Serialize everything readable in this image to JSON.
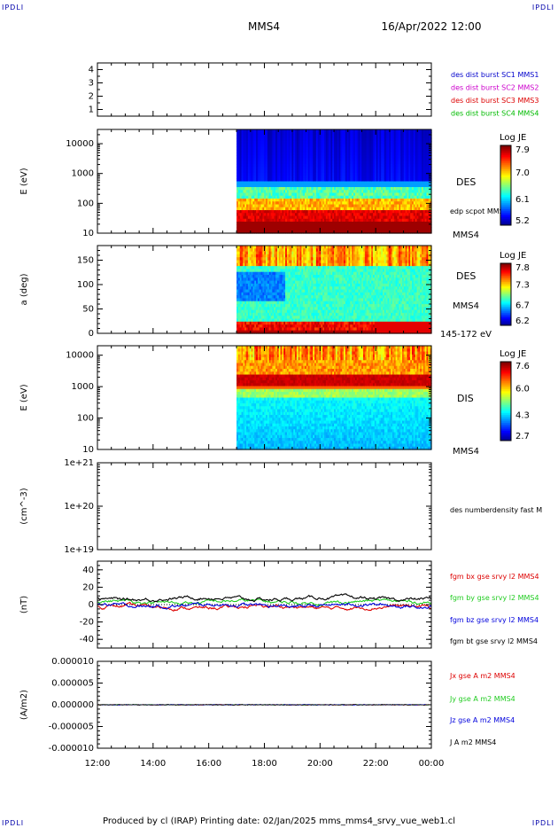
{
  "corners": {
    "tl": "IPDLI",
    "tr": "IPDLI",
    "bl": "IPDLI",
    "br": "IPDLI"
  },
  "header": {
    "spacecraft": "MMS4",
    "datetime": "16/Apr/2022 12:00"
  },
  "footer": "Produced by cl (IRAP)   Printing date: 02/Jan/2025   mms_mms4_srvy_vue_web1.cl",
  "colors": {
    "mms1": "#0000cc",
    "mms2": "#cc00cc",
    "mms3": "#dd0000",
    "mms4": "#00bb00",
    "bx": "#dd0000",
    "by": "#22cc22",
    "bz": "#0000dd",
    "bt": "#000000"
  },
  "chart_data": [
    {
      "type": "line",
      "panel": "burst",
      "ylim": [
        0.5,
        4.5
      ],
      "yticks": [
        "1",
        "2",
        "3",
        "4"
      ],
      "legend": [
        "des dist burst SC1 MMS1",
        "des dist burst SC2 MMS2",
        "des dist burst SC3 MMS3",
        "des dist burst SC4 MMS4"
      ]
    },
    {
      "type": "heatmap",
      "panel": "des-energy",
      "ylabel": "E (eV)",
      "yscale": "log",
      "ylim": [
        10,
        30000
      ],
      "yticks": [
        "10",
        "100",
        "1000",
        "10000"
      ],
      "data_start": "17:00",
      "label": "DES",
      "extra_label": "edp scpot MMS4",
      "sc_label": "MMS4",
      "colorbar": {
        "title": "Log JE",
        "ticks": [
          "7.9",
          "7.0",
          "6.1",
          "5.2"
        ]
      }
    },
    {
      "type": "heatmap",
      "panel": "des-pitch",
      "ylabel": "a (deg)",
      "ylim": [
        0,
        180
      ],
      "yticks": [
        "0",
        "50",
        "100",
        "150"
      ],
      "data_start": "17:00",
      "label": "DES",
      "sc_label": "MMS4",
      "energy_label": "145-172 eV",
      "colorbar": {
        "title": "Log JE",
        "ticks": [
          "7.8",
          "7.3",
          "6.7",
          "6.2"
        ]
      }
    },
    {
      "type": "heatmap",
      "panel": "dis-energy",
      "ylabel": "E (eV)",
      "yscale": "log",
      "ylim": [
        10,
        20000
      ],
      "yticks": [
        "10",
        "100",
        "1000",
        "10000"
      ],
      "data_start": "17:00",
      "label": "DIS",
      "sc_label": "MMS4",
      "colorbar": {
        "title": "Log JE",
        "ticks": [
          "7.6",
          "6.0",
          "4.3",
          "2.7"
        ]
      }
    },
    {
      "type": "line",
      "panel": "density",
      "ylabel": "(cm^-3)",
      "yscale": "log",
      "ylim": [
        1e+19,
        1e+21
      ],
      "yticks": [
        "1e+19",
        "1e+20",
        "1e+21"
      ],
      "legend": [
        "des numberdensity fast M"
      ]
    },
    {
      "type": "line",
      "panel": "fgm",
      "ylabel": "(nT)",
      "ylim": [
        -50,
        50
      ],
      "yticks": [
        "-40",
        "-20",
        "0",
        "20",
        "40"
      ],
      "series": [
        {
          "name": "fgm bx gse srvy l2 MMS4",
          "color": "#dd0000",
          "level": -3
        },
        {
          "name": "fgm by gse srvy l2 MMS4",
          "color": "#22cc22",
          "level": 3
        },
        {
          "name": "fgm bz gse srvy l2 MMS4",
          "color": "#0000dd",
          "level": -1
        },
        {
          "name": "fgm bt gse srvy l2 MMS4",
          "color": "#000000",
          "level": 7
        }
      ]
    },
    {
      "type": "line",
      "panel": "current",
      "ylabel": "(A/m2)",
      "ylim": [
        -1e-05,
        1e-05
      ],
      "yticks": [
        "-0.000010",
        "-0.000005",
        "0.000000",
        "0.000005",
        "0.000010"
      ],
      "series": [
        {
          "name": "Jx gse A m2 MMS4",
          "color": "#dd0000"
        },
        {
          "name": "Jy gse A m2 MMS4",
          "color": "#22cc22"
        },
        {
          "name": "Jz gse A m2 MMS4",
          "color": "#0000dd"
        },
        {
          "name": "J A m2 MMS4",
          "color": "#000000"
        }
      ]
    }
  ],
  "xaxis": {
    "ticks": [
      "12:00",
      "14:00",
      "16:00",
      "18:00",
      "20:00",
      "22:00",
      "00:00"
    ]
  }
}
